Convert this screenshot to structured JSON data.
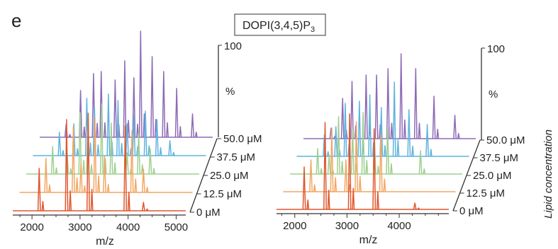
{
  "figure": {
    "panel_letter": "e",
    "title_main": "DOPI(3,4,5)P",
    "title_subscript": "3"
  },
  "chart_data": [
    {
      "type": "line",
      "title": "DOPI(3,4,5)P3",
      "xlabel": "m/z",
      "ylabel": "%",
      "zlabel": "Lipid concentration",
      "x_ticks": [
        2000,
        3000,
        4000,
        5000
      ],
      "xlim": [
        1600,
        5200
      ],
      "y_ticks": [
        100
      ],
      "ylim": [
        0,
        100
      ],
      "z_labels": [
        "0 μM",
        "12.5 μM",
        "25.0 μM",
        "37.5 μM",
        "50.0 μM"
      ],
      "colors": [
        "#e0572f",
        "#f4a662",
        "#9fcf8f",
        "#5fb4de",
        "#8d6bb6"
      ],
      "series": [
        {
          "name": "0 μM",
          "peaks": [
            {
              "x": 2150,
              "y": 40
            },
            {
              "x": 2720,
              "y": 86
            },
            {
              "x": 3170,
              "y": 92
            },
            {
              "x": 3940,
              "y": 80
            },
            {
              "x": 4320,
              "y": 8
            }
          ]
        },
        {
          "name": "12.5 μM",
          "peaks": [
            {
              "x": 2150,
              "y": 32
            },
            {
              "x": 2720,
              "y": 62
            },
            {
              "x": 2880,
              "y": 28
            },
            {
              "x": 3170,
              "y": 70
            },
            {
              "x": 3370,
              "y": 34
            },
            {
              "x": 3940,
              "y": 58
            },
            {
              "x": 4180,
              "y": 22
            }
          ]
        },
        {
          "name": "25.0 μM",
          "peaks": [
            {
              "x": 2150,
              "y": 26
            },
            {
              "x": 2450,
              "y": 22
            },
            {
              "x": 2720,
              "y": 58
            },
            {
              "x": 2880,
              "y": 40
            },
            {
              "x": 3170,
              "y": 66
            },
            {
              "x": 3370,
              "y": 48
            },
            {
              "x": 3700,
              "y": 20
            },
            {
              "x": 3940,
              "y": 40
            },
            {
              "x": 4180,
              "y": 24
            }
          ]
        },
        {
          "name": "37.5 μM",
          "peaks": [
            {
              "x": 2150,
              "y": 22
            },
            {
              "x": 2450,
              "y": 30
            },
            {
              "x": 2720,
              "y": 54
            },
            {
              "x": 2880,
              "y": 46
            },
            {
              "x": 3170,
              "y": 58
            },
            {
              "x": 3370,
              "y": 52
            },
            {
              "x": 3560,
              "y": 30
            },
            {
              "x": 3700,
              "y": 38
            },
            {
              "x": 3940,
              "y": 42
            },
            {
              "x": 4180,
              "y": 34
            },
            {
              "x": 4450,
              "y": 14
            }
          ]
        },
        {
          "name": "50.0 μM",
          "peaks": [
            {
              "x": 2150,
              "y": 12
            },
            {
              "x": 2450,
              "y": 44
            },
            {
              "x": 2720,
              "y": 60
            },
            {
              "x": 2880,
              "y": 62
            },
            {
              "x": 3170,
              "y": 54
            },
            {
              "x": 3370,
              "y": 72
            },
            {
              "x": 3560,
              "y": 56
            },
            {
              "x": 3700,
              "y": 100
            },
            {
              "x": 3940,
              "y": 76
            },
            {
              "x": 4180,
              "y": 62
            },
            {
              "x": 4450,
              "y": 46
            },
            {
              "x": 4780,
              "y": 22
            }
          ]
        }
      ]
    },
    {
      "type": "line",
      "title": "DOPI(3,4,5)P3",
      "xlabel": "m/z",
      "ylabel": "%",
      "zlabel": "Lipid concentration",
      "x_ticks": [
        2000,
        3000,
        4000
      ],
      "xlim": [
        1650,
        4950
      ],
      "y_ticks": [
        100
      ],
      "ylim": [
        0,
        100
      ],
      "z_labels": [
        "0 μM",
        "12.5 μM",
        "25.0 μM",
        "37.5 μM",
        "50.0 μM"
      ],
      "colors": [
        "#e0572f",
        "#f4a662",
        "#9fcf8f",
        "#5fb4de",
        "#8d6bb6"
      ],
      "series": [
        {
          "name": "0 μM",
          "peaks": [
            {
              "x": 2180,
              "y": 40
            },
            {
              "x": 2580,
              "y": 82
            },
            {
              "x": 3050,
              "y": 90
            },
            {
              "x": 3520,
              "y": 76
            },
            {
              "x": 4300,
              "y": 6
            }
          ]
        },
        {
          "name": "12.5 μM",
          "peaks": [
            {
              "x": 2180,
              "y": 30
            },
            {
              "x": 2580,
              "y": 60
            },
            {
              "x": 2850,
              "y": 30
            },
            {
              "x": 3050,
              "y": 66
            },
            {
              "x": 3520,
              "y": 54
            }
          ]
        },
        {
          "name": "25.0 μM",
          "peaks": [
            {
              "x": 2180,
              "y": 24
            },
            {
              "x": 2400,
              "y": 18
            },
            {
              "x": 2580,
              "y": 54
            },
            {
              "x": 2850,
              "y": 42
            },
            {
              "x": 3050,
              "y": 58
            },
            {
              "x": 3270,
              "y": 34
            },
            {
              "x": 3520,
              "y": 44
            },
            {
              "x": 4150,
              "y": 22
            }
          ]
        },
        {
          "name": "37.5 μM",
          "peaks": [
            {
              "x": 2180,
              "y": 20
            },
            {
              "x": 2400,
              "y": 28
            },
            {
              "x": 2580,
              "y": 50
            },
            {
              "x": 2850,
              "y": 52
            },
            {
              "x": 3050,
              "y": 58
            },
            {
              "x": 3270,
              "y": 46
            },
            {
              "x": 3520,
              "y": 70
            },
            {
              "x": 3800,
              "y": 44
            },
            {
              "x": 4150,
              "y": 30
            }
          ]
        },
        {
          "name": "50.0 μM",
          "peaks": [
            {
              "x": 2180,
              "y": 10
            },
            {
              "x": 2400,
              "y": 38
            },
            {
              "x": 2580,
              "y": 54
            },
            {
              "x": 2850,
              "y": 60
            },
            {
              "x": 3050,
              "y": 60
            },
            {
              "x": 3270,
              "y": 66
            },
            {
              "x": 3520,
              "y": 80
            },
            {
              "x": 3800,
              "y": 66
            },
            {
              "x": 4150,
              "y": 40
            },
            {
              "x": 4550,
              "y": 22
            }
          ]
        }
      ]
    }
  ]
}
